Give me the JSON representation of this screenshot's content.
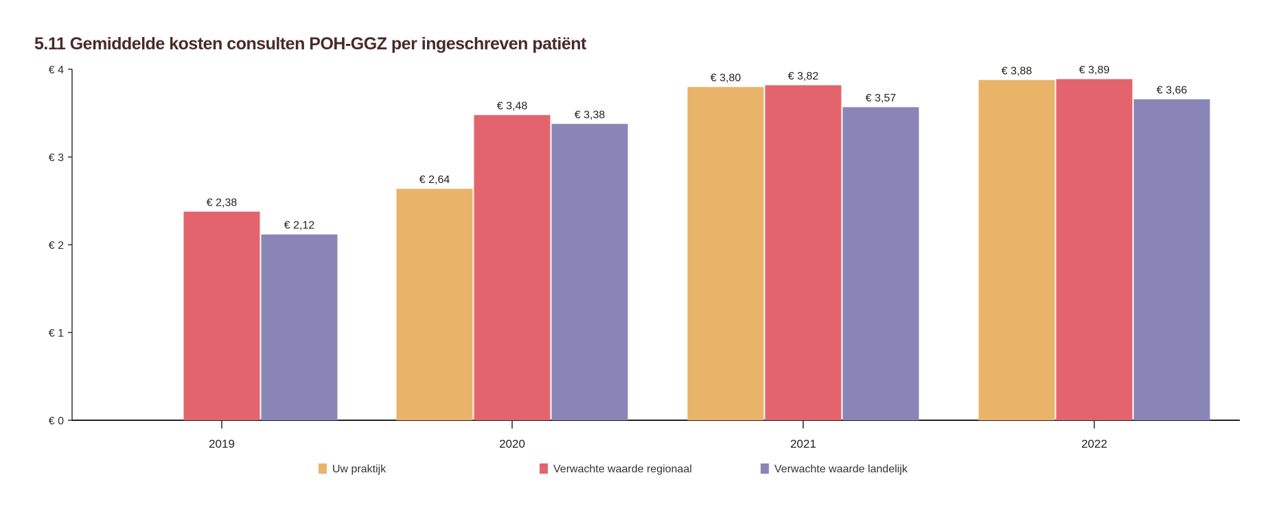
{
  "chart_data": {
    "type": "bar",
    "title": "5.11 Gemiddelde kosten consulten POH-GGZ per ingeschreven patiënt",
    "xlabel": "",
    "ylabel": "",
    "ylim": [
      0,
      4
    ],
    "yticks": [
      0,
      1,
      2,
      3,
      4
    ],
    "ytick_labels": [
      "€ 0",
      "€ 1",
      "€ 2",
      "€ 3",
      "€ 4"
    ],
    "categories": [
      "2019",
      "2020",
      "2021",
      "2022"
    ],
    "series": [
      {
        "name": "Uw praktijk",
        "color": "#E9B36A",
        "values": [
          null,
          2.64,
          3.8,
          3.88
        ],
        "labels": [
          null,
          "€ 2,64",
          "€ 3,80",
          "€ 3,88"
        ]
      },
      {
        "name": "Verwachte waarde regionaal",
        "color": "#E4646E",
        "values": [
          2.38,
          3.48,
          3.82,
          3.89
        ],
        "labels": [
          "€ 2,38",
          "€ 3,48",
          "€ 3,82",
          "€ 3,89"
        ]
      },
      {
        "name": "Verwachte waarde landelijk",
        "color": "#8986B7",
        "values": [
          2.12,
          3.38,
          3.57,
          3.66
        ],
        "labels": [
          "€ 2,12",
          "€ 3,38",
          "€ 3,57",
          "€ 3,66"
        ]
      }
    ],
    "grid": false,
    "legend_position": "bottom"
  }
}
